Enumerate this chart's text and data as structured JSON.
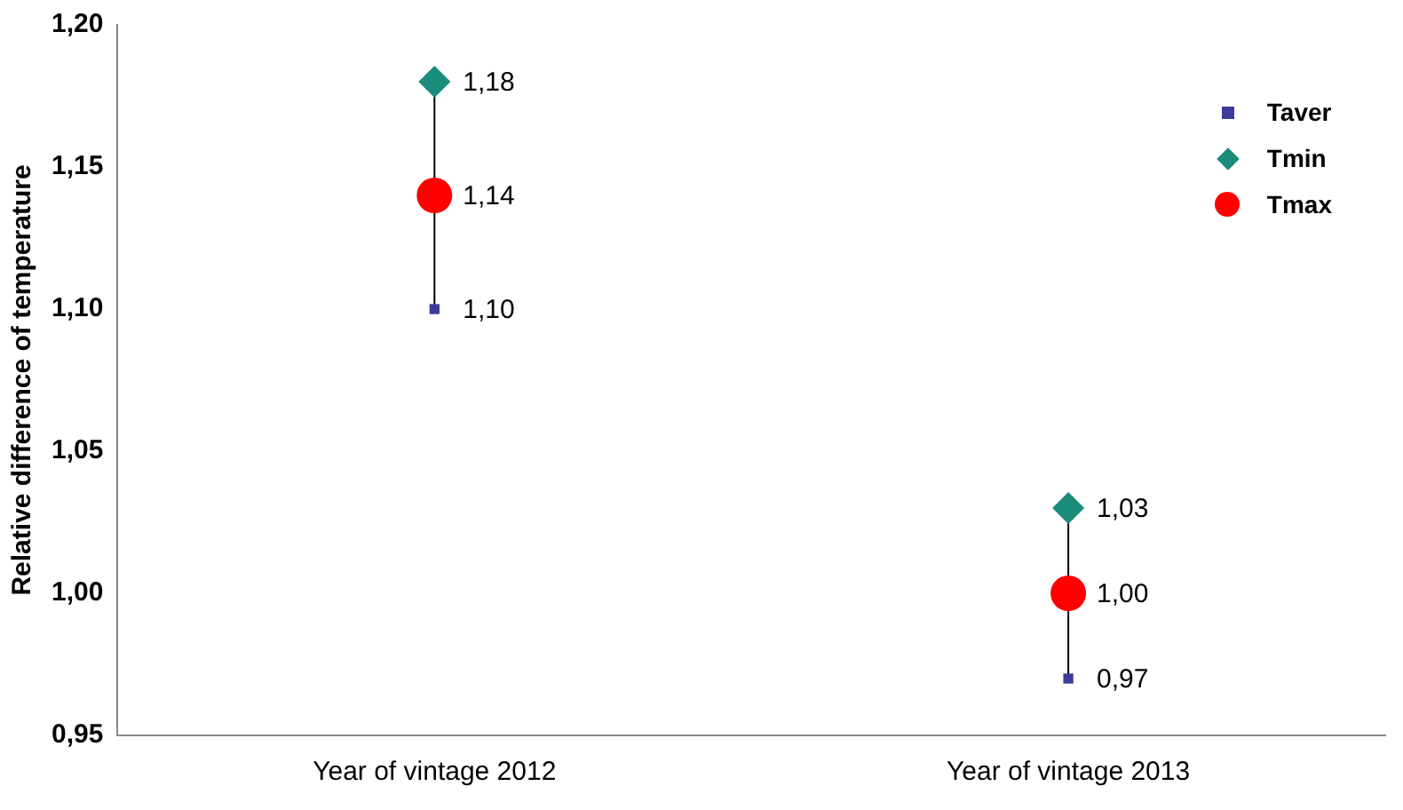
{
  "chart_data": {
    "type": "scatter",
    "ylabel": "Relative difference of temperature",
    "categories": [
      "Year of vintage 2012",
      "Year of vintage 2013"
    ],
    "series": [
      {
        "name": "Taver",
        "color": "#3c3c9c",
        "marker": "square",
        "x": [
          "Year of vintage 2012",
          "Year of vintage 2013"
        ],
        "values": [
          1.1,
          0.97
        ],
        "value_labels": [
          "1,10",
          "0,97"
        ]
      },
      {
        "name": "Tmin",
        "color": "#1a8c7c",
        "marker": "diamond",
        "x": [
          "Year of vintage 2012",
          "Year of vintage 2013"
        ],
        "values": [
          1.18,
          1.03
        ],
        "value_labels": [
          "1,18",
          "1,03"
        ]
      },
      {
        "name": "Tmax",
        "color": "#ff0000",
        "marker": "circle",
        "x": [
          "Year of vintage 2012",
          "Year of vintage 2013"
        ],
        "values": [
          1.14,
          1.0
        ],
        "value_labels": [
          "1,14",
          "1,00"
        ]
      }
    ],
    "ylim": [
      0.95,
      1.2
    ],
    "yticks": [
      {
        "value": 0.95,
        "label": "0,95"
      },
      {
        "value": 1.0,
        "label": "1,00"
      },
      {
        "value": 1.05,
        "label": "1,05"
      },
      {
        "value": 1.1,
        "label": "1,10"
      },
      {
        "value": 1.15,
        "label": "1,15"
      },
      {
        "value": 1.2,
        "label": "1,20"
      }
    ],
    "grid": false,
    "legend": "top right"
  }
}
